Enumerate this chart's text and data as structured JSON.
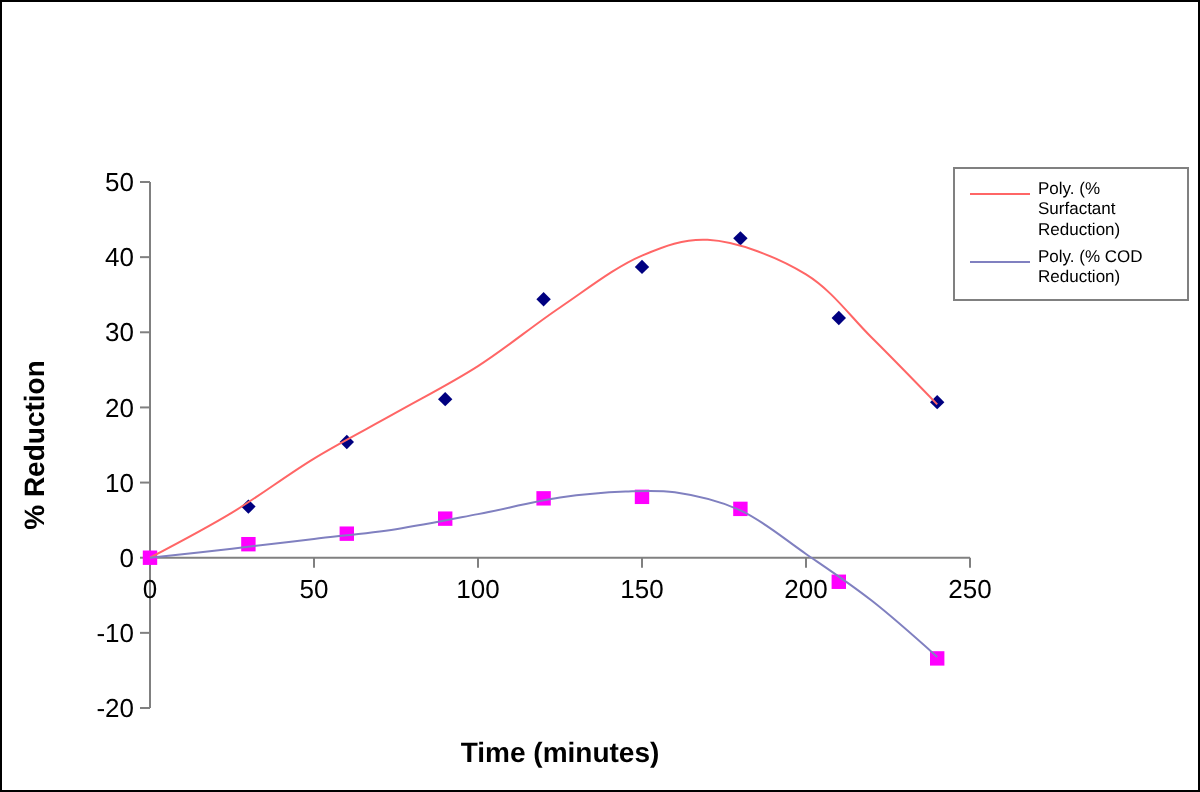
{
  "chart_data": {
    "type": "scatter",
    "xlabel": "Time (minutes)",
    "ylabel": "% Reduction",
    "xlim": [
      0,
      250
    ],
    "ylim": [
      -20,
      50
    ],
    "xticks": [
      0,
      50,
      100,
      150,
      200,
      250
    ],
    "yticks": [
      -20,
      -10,
      0,
      10,
      20,
      30,
      40,
      50
    ],
    "grid": false,
    "legend": "top right",
    "x": [
      0,
      30,
      60,
      90,
      120,
      150,
      180,
      210,
      240
    ],
    "series": [
      {
        "marker": "diamond",
        "color": "#000080",
        "values": [
          null,
          6.8,
          15.4,
          21.1,
          34.4,
          38.7,
          42.5,
          31.9,
          20.7
        ]
      },
      {
        "marker": "square",
        "color": "#ff00ff",
        "values": [
          0,
          1.8,
          3.2,
          5.2,
          7.9,
          8.1,
          6.5,
          -3.2,
          -13.4
        ]
      },
      {
        "type": "line",
        "name": "Poly. (% Surfactant Reduction)",
        "color": "#ff6666",
        "marker": "none",
        "x": [
          0,
          25,
          50,
          75,
          100,
          125,
          150,
          170,
          200,
          220,
          240
        ],
        "values": [
          0,
          6,
          13.2,
          19.3,
          25.5,
          33.3,
          40.2,
          42.3,
          37.7,
          29.3,
          20.4
        ]
      },
      {
        "type": "line",
        "name": "Poly. (% COD Reduction)",
        "color": "#8080c0",
        "marker": "none",
        "x": [
          0,
          25,
          50,
          75,
          100,
          125,
          145,
          160,
          180,
          200,
          220,
          240
        ],
        "values": [
          0,
          1.2,
          2.5,
          3.8,
          5.8,
          8,
          8.8,
          8.7,
          6.3,
          0.5,
          -5.7,
          -13.2
        ]
      }
    ]
  }
}
